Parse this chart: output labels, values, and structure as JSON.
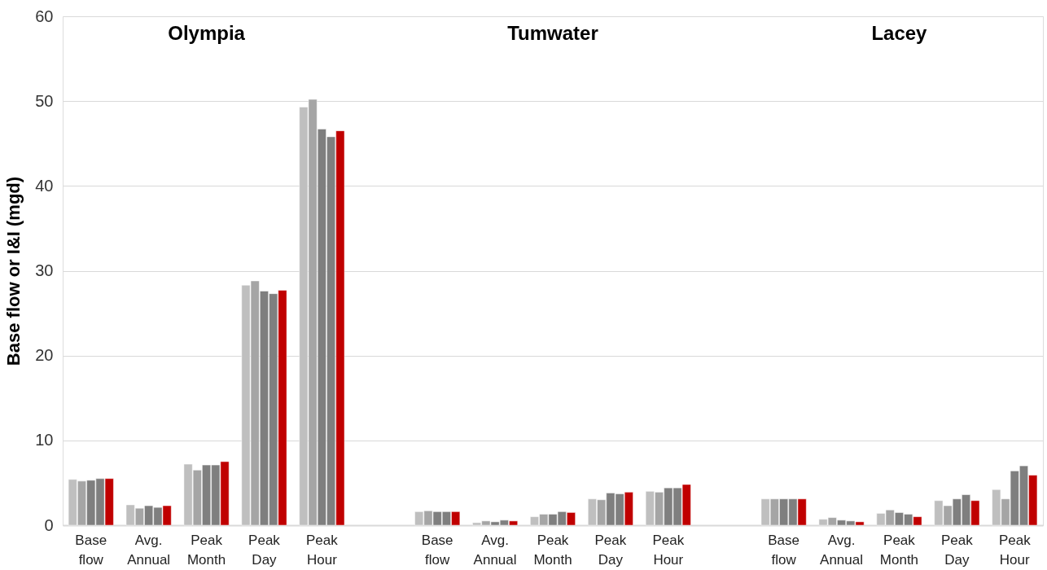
{
  "chart_data": {
    "type": "bar",
    "ylabel": "Base flow or I&I (mgd)",
    "categories": [
      "Base flow",
      "Avg. Annual",
      "Peak Month",
      "Peak Day",
      "Peak Hour",
      null,
      "Base flow",
      "Avg. Annual",
      "Peak Month",
      "Peak Day",
      "Peak Hour",
      null,
      "Base flow",
      "Avg. Annual",
      "Peak Month",
      "Peak Day",
      "Peak Hour"
    ],
    "series": [
      {
        "color": "#bfbfbf",
        "values": [
          5.4,
          2.4,
          7.2,
          28.3,
          49.3,
          null,
          1.6,
          0.3,
          1.0,
          3.1,
          4.0,
          null,
          3.1,
          0.7,
          1.4,
          2.9,
          4.2
        ]
      },
      {
        "color": "#a5a5a5",
        "values": [
          5.2,
          2.0,
          6.5,
          28.8,
          50.2,
          null,
          1.7,
          0.5,
          1.3,
          3.0,
          3.9,
          null,
          3.1,
          0.9,
          1.8,
          2.3,
          3.1
        ]
      },
      {
        "color": "#7f7f7f",
        "values": [
          5.3,
          2.3,
          7.1,
          27.6,
          46.7,
          null,
          1.6,
          0.4,
          1.3,
          3.8,
          4.4,
          null,
          3.1,
          0.6,
          1.5,
          3.1,
          6.4
        ]
      },
      {
        "color": "#7f7f7f",
        "values": [
          5.5,
          2.1,
          7.1,
          27.3,
          45.8,
          null,
          1.6,
          0.6,
          1.6,
          3.7,
          4.4,
          null,
          3.1,
          0.5,
          1.3,
          3.6,
          7.0
        ]
      },
      {
        "color": "#c00000",
        "values": [
          5.5,
          2.3,
          7.5,
          27.7,
          46.5,
          null,
          1.6,
          0.5,
          1.5,
          3.9,
          4.8,
          null,
          3.1,
          0.4,
          1.0,
          2.9,
          5.9
        ]
      }
    ],
    "ylim": [
      0,
      60
    ],
    "yticks": [
      0,
      10,
      20,
      30,
      40,
      50,
      60
    ],
    "grid": "y",
    "legend": false,
    "annotations": [
      "Olympia",
      "Tumwater",
      "Lacey"
    ]
  }
}
